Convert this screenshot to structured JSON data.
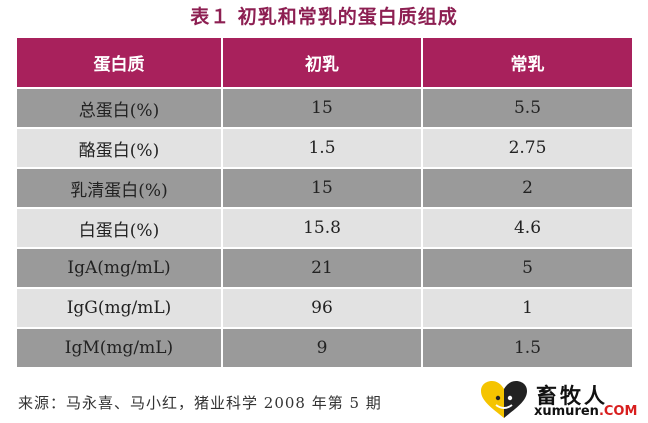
{
  "title": "表１  初乳和常乳的蛋白质组成",
  "table": {
    "headers": [
      "蛋白质",
      "初乳",
      "常乳"
    ],
    "rows": [
      [
        "总蛋白(%)",
        "15",
        "5.5"
      ],
      [
        "酪蛋白(%)",
        "1.5",
        "2.75"
      ],
      [
        "乳清蛋白(%)",
        "15",
        "2"
      ],
      [
        "白蛋白(%)",
        "15.8",
        "4.6"
      ],
      [
        "IgA(mg/mL)",
        "21",
        "5"
      ],
      [
        "IgG(mg/mL)",
        "96",
        "1"
      ],
      [
        "IgM(mg/mL)",
        "9",
        "1.5"
      ]
    ]
  },
  "source": "来源：马永喜、马小红，猪业科学 2008 年第 5 期",
  "watermark": {
    "name": "畜牧人",
    "domain_main": "xumuren",
    "domain_tld": ".COM",
    "colors": {
      "heart_left": "#f5c400",
      "heart_right": "#222222",
      "tld": "#d81e1e"
    }
  },
  "colors": {
    "title": "#8d1f52",
    "header_bg": "#a8215c",
    "row_dark": "#9a9a9a",
    "row_light": "#e2e2e2"
  }
}
